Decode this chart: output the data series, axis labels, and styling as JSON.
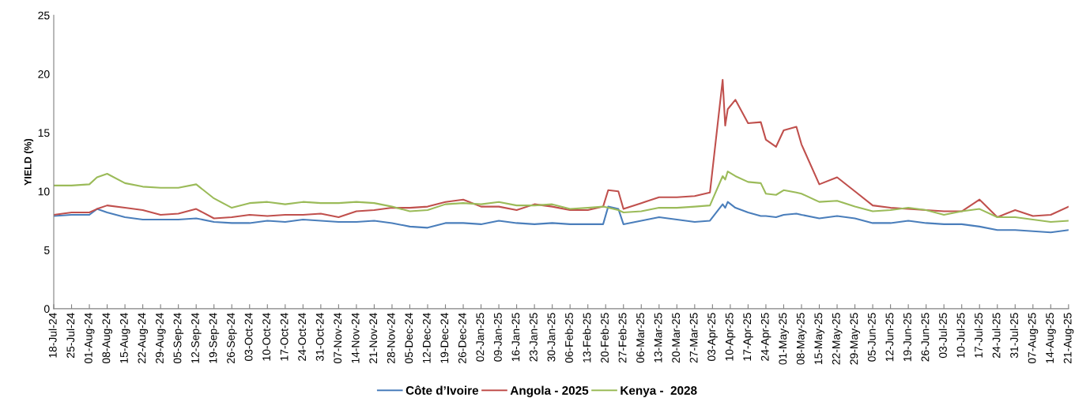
{
  "chart_data": {
    "type": "line",
    "ylabel": "YIELD (%)",
    "x": [
      "2024-07-18",
      "2024-07-25",
      "2024-08-01",
      "2024-08-04",
      "2024-08-08",
      "2024-08-15",
      "2024-08-22",
      "2024-08-29",
      "2024-09-05",
      "2024-09-12",
      "2024-09-19",
      "2024-09-26",
      "2024-10-03",
      "2024-10-10",
      "2024-10-17",
      "2024-10-24",
      "2024-10-31",
      "2024-11-07",
      "2024-11-14",
      "2024-11-21",
      "2024-11-28",
      "2024-12-05",
      "2024-12-12",
      "2024-12-19",
      "2024-12-26",
      "2025-01-02",
      "2025-01-09",
      "2025-01-16",
      "2025-01-23",
      "2025-01-30",
      "2025-02-06",
      "2025-02-13",
      "2025-02-19",
      "2025-02-21",
      "2025-02-25",
      "2025-02-27",
      "2025-03-06",
      "2025-03-13",
      "2025-03-20",
      "2025-03-27",
      "2025-04-02",
      "2025-04-07",
      "2025-04-08",
      "2025-04-09",
      "2025-04-12",
      "2025-04-17",
      "2025-04-22",
      "2025-04-24",
      "2025-04-28",
      "2025-05-01",
      "2025-05-06",
      "2025-05-08",
      "2025-05-15",
      "2025-05-22",
      "2025-05-29",
      "2025-06-05",
      "2025-06-12",
      "2025-06-19",
      "2025-06-26",
      "2025-07-03",
      "2025-07-10",
      "2025-07-17",
      "2025-07-24",
      "2025-07-31",
      "2025-08-07",
      "2025-08-14",
      "2025-08-21"
    ],
    "series": [
      {
        "name": "Côte d’Ivoire",
        "color": "#4a7ebb",
        "values": [
          7.9,
          8.0,
          8.0,
          8.5,
          8.2,
          7.8,
          7.6,
          7.6,
          7.6,
          7.7,
          7.4,
          7.3,
          7.3,
          7.5,
          7.4,
          7.6,
          7.5,
          7.4,
          7.4,
          7.5,
          7.3,
          7.0,
          6.9,
          7.3,
          7.3,
          7.2,
          7.5,
          7.3,
          7.2,
          7.3,
          7.2,
          7.2,
          7.2,
          8.7,
          8.5,
          7.2,
          7.5,
          7.8,
          7.6,
          7.4,
          7.5,
          8.9,
          8.6,
          9.1,
          8.6,
          8.2,
          7.9,
          7.9,
          7.8,
          8.0,
          8.1,
          8.0,
          7.7,
          7.9,
          7.7,
          7.3,
          7.3,
          7.5,
          7.3,
          7.2,
          7.2,
          7.0,
          6.7,
          6.7,
          6.6,
          6.5,
          6.7
        ]
      },
      {
        "name": "Angola - 2025",
        "color": "#c0504d",
        "values": [
          8.0,
          8.2,
          8.2,
          8.5,
          8.8,
          8.6,
          8.4,
          8.0,
          8.1,
          8.5,
          7.7,
          7.8,
          8.0,
          7.9,
          8.0,
          8.0,
          8.1,
          7.8,
          8.3,
          8.4,
          8.6,
          8.6,
          8.7,
          9.1,
          9.3,
          8.7,
          8.7,
          8.4,
          8.9,
          8.7,
          8.4,
          8.4,
          8.7,
          10.1,
          10.0,
          8.5,
          9.0,
          9.5,
          9.5,
          9.6,
          9.9,
          19.5,
          15.6,
          17.0,
          17.8,
          15.8,
          15.9,
          14.4,
          13.8,
          15.2,
          15.5,
          14.0,
          10.6,
          11.2,
          10.0,
          8.8,
          8.6,
          8.5,
          8.4,
          8.3,
          8.3,
          9.3,
          7.8,
          8.4,
          7.9,
          8.0,
          8.7
        ]
      },
      {
        "name": "Kenya -  2028",
        "color": "#9bbb59",
        "values": [
          10.5,
          10.5,
          10.6,
          11.2,
          11.5,
          10.7,
          10.4,
          10.3,
          10.3,
          10.6,
          9.4,
          8.6,
          9.0,
          9.1,
          8.9,
          9.1,
          9.0,
          9.0,
          9.1,
          9.0,
          8.7,
          8.3,
          8.4,
          8.9,
          9.0,
          8.9,
          9.1,
          8.8,
          8.8,
          8.9,
          8.5,
          8.6,
          8.7,
          8.6,
          8.4,
          8.2,
          8.3,
          8.6,
          8.6,
          8.7,
          8.8,
          11.3,
          11.0,
          11.7,
          11.3,
          10.8,
          10.7,
          9.8,
          9.7,
          10.1,
          9.9,
          9.8,
          9.1,
          9.2,
          8.7,
          8.3,
          8.4,
          8.6,
          8.4,
          8.0,
          8.3,
          8.5,
          7.8,
          7.8,
          7.6,
          7.4,
          7.5
        ]
      }
    ],
    "xlim": [
      "2024-07-18",
      "2025-08-21"
    ],
    "xticks": [
      {
        "value": "2024-07-18",
        "label": "18-Jul-24"
      },
      {
        "value": "2024-07-25",
        "label": "25-Jul-24"
      },
      {
        "value": "2024-08-01",
        "label": "01-Aug-24"
      },
      {
        "value": "2024-08-08",
        "label": "08-Aug-24"
      },
      {
        "value": "2024-08-15",
        "label": "15-Aug-24"
      },
      {
        "value": "2024-08-22",
        "label": "22-Aug-24"
      },
      {
        "value": "2024-08-29",
        "label": "29-Aug-24"
      },
      {
        "value": "2024-09-05",
        "label": "05-Sep-24"
      },
      {
        "value": "2024-09-12",
        "label": "12-Sep-24"
      },
      {
        "value": "2024-09-19",
        "label": "19-Sep-24"
      },
      {
        "value": "2024-09-26",
        "label": "26-Sep-24"
      },
      {
        "value": "2024-10-03",
        "label": "03-Oct-24"
      },
      {
        "value": "2024-10-10",
        "label": "10-Oct-24"
      },
      {
        "value": "2024-10-17",
        "label": "17-Oct-24"
      },
      {
        "value": "2024-10-24",
        "label": "24-Oct-24"
      },
      {
        "value": "2024-10-31",
        "label": "31-Oct-24"
      },
      {
        "value": "2024-11-07",
        "label": "07-Nov-24"
      },
      {
        "value": "2024-11-14",
        "label": "14-Nov-24"
      },
      {
        "value": "2024-11-21",
        "label": "21-Nov-24"
      },
      {
        "value": "2024-11-28",
        "label": "28-Nov-24"
      },
      {
        "value": "2024-12-05",
        "label": "05-Dec-24"
      },
      {
        "value": "2024-12-12",
        "label": "12-Dec-24"
      },
      {
        "value": "2024-12-19",
        "label": "19-Dec-24"
      },
      {
        "value": "2024-12-26",
        "label": "26-Dec-24"
      },
      {
        "value": "2025-01-02",
        "label": "02-Jan-25"
      },
      {
        "value": "2025-01-09",
        "label": "09-Jan-25"
      },
      {
        "value": "2025-01-16",
        "label": "16-Jan-25"
      },
      {
        "value": "2025-01-23",
        "label": "23-Jan-25"
      },
      {
        "value": "2025-01-30",
        "label": "30-Jan-25"
      },
      {
        "value": "2025-02-06",
        "label": "06-Feb-25"
      },
      {
        "value": "2025-02-13",
        "label": "13-Feb-25"
      },
      {
        "value": "2025-02-20",
        "label": "20-Feb-25"
      },
      {
        "value": "2025-02-27",
        "label": "27-Feb-25"
      },
      {
        "value": "2025-03-06",
        "label": "06-Mar-25"
      },
      {
        "value": "2025-03-13",
        "label": "13-Mar-25"
      },
      {
        "value": "2025-03-20",
        "label": "20-Mar-25"
      },
      {
        "value": "2025-03-27",
        "label": "27-Mar-25"
      },
      {
        "value": "2025-04-03",
        "label": "03-Apr-25"
      },
      {
        "value": "2025-04-10",
        "label": "10-Apr-25"
      },
      {
        "value": "2025-04-17",
        "label": "17-Apr-25"
      },
      {
        "value": "2025-04-24",
        "label": "24-Apr-25"
      },
      {
        "value": "2025-05-01",
        "label": "01-May-25"
      },
      {
        "value": "2025-05-08",
        "label": "08-May-25"
      },
      {
        "value": "2025-05-15",
        "label": "15-May-25"
      },
      {
        "value": "2025-05-22",
        "label": "22-May-25"
      },
      {
        "value": "2025-05-29",
        "label": "29-May-25"
      },
      {
        "value": "2025-06-05",
        "label": "05-Jun-25"
      },
      {
        "value": "2025-06-12",
        "label": "12-Jun-25"
      },
      {
        "value": "2025-06-19",
        "label": "19-Jun-25"
      },
      {
        "value": "2025-06-26",
        "label": "26-Jun-25"
      },
      {
        "value": "2025-07-03",
        "label": "03-Jul-25"
      },
      {
        "value": "2025-07-10",
        "label": "10-Jul-25"
      },
      {
        "value": "2025-07-17",
        "label": "17-Jul-25"
      },
      {
        "value": "2025-07-24",
        "label": "24-Jul-25"
      },
      {
        "value": "2025-07-31",
        "label": "31-Jul-25"
      },
      {
        "value": "2025-08-07",
        "label": "07-Aug-25"
      },
      {
        "value": "2025-08-14",
        "label": "14-Aug-25"
      },
      {
        "value": "2025-08-21",
        "label": "21-Aug-25"
      }
    ],
    "ylim": [
      0,
      25
    ],
    "yticks": [
      0,
      5,
      10,
      15,
      20,
      25
    ],
    "grid": false,
    "legend": "bottom",
    "marker": "none",
    "line_style": "solid"
  }
}
